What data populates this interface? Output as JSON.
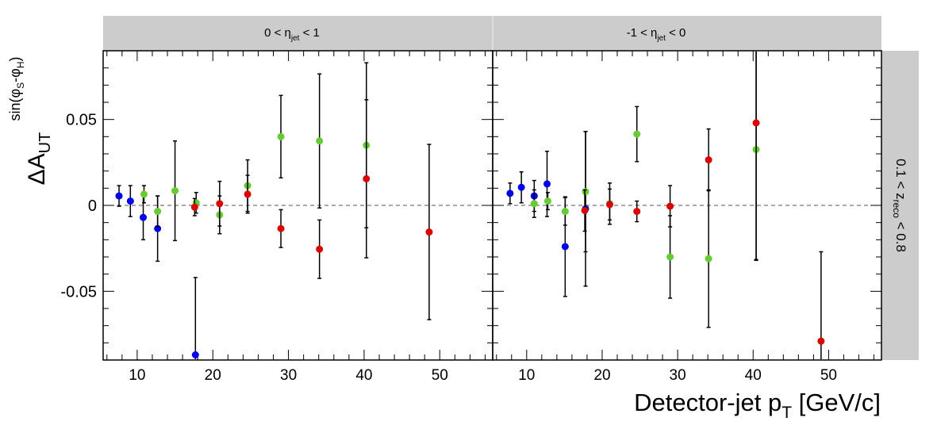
{
  "chart_data": {
    "type": "scatter",
    "title": "",
    "ylabel": {
      "base": "ΔA",
      "sub": "UT",
      "sup_pre": "sin(φ",
      "sup_s1": "S",
      "sup_mid": "-φ",
      "sup_s2": "H",
      "sup_post": ")"
    },
    "xlabel": {
      "main": "Detector-jet p",
      "sub": "T",
      "post": " [GeV/c]"
    },
    "row_label": {
      "pre": "0.1 < z",
      "sub": "reco",
      "post": " < 0.8"
    },
    "xlim": [
      5.5,
      57
    ],
    "ylim": [
      -0.09,
      0.09
    ],
    "x_ticks": [
      10,
      20,
      30,
      40,
      50
    ],
    "y_ticks": [
      0.05,
      0,
      -0.05
    ],
    "y_tick_labels": [
      "0.05",
      "0",
      "-0.05"
    ],
    "reference_line": 0,
    "series_colors": {
      "blue": "#0000ee",
      "green": "#66cc33",
      "red": "#dd0000"
    },
    "panels": [
      {
        "header": {
          "pre": "0 < η",
          "sub": "jet",
          "post": " < 1"
        },
        "series": [
          {
            "color": "blue",
            "points": [
              {
                "x": 7.6,
                "y": 0.0055,
                "err": 0.006
              },
              {
                "x": 9.1,
                "y": 0.0025,
                "err": 0.009
              },
              {
                "x": 10.8,
                "y": -0.007,
                "err": 0.013
              },
              {
                "x": 12.7,
                "y": -0.0135,
                "err": 0.019
              },
              {
                "x": 17.7,
                "y": -0.087,
                "err": 0.045
              }
            ]
          },
          {
            "color": "green",
            "points": [
              {
                "x": 10.9,
                "y": 0.0065,
                "err": 0.005
              },
              {
                "x": 12.7,
                "y": -0.0035,
                "err": 0.009
              },
              {
                "x": 15.0,
                "y": 0.0085,
                "err": 0.029
              },
              {
                "x": 17.8,
                "y": 0.0015,
                "err": 0.006
              },
              {
                "x": 20.9,
                "y": -0.0055,
                "err": 0.011
              },
              {
                "x": 24.6,
                "y": 0.0115,
                "err": 0.015
              },
              {
                "x": 29.0,
                "y": 0.04,
                "err": 0.024
              },
              {
                "x": 34.1,
                "y": 0.0375,
                "err": 0.039
              },
              {
                "x": 40.3,
                "y": 0.035,
                "err": 0.048
              }
            ]
          },
          {
            "color": "red",
            "points": [
              {
                "x": 17.6,
                "y": -0.001,
                "err": 0.005
              },
              {
                "x": 20.9,
                "y": 0.001,
                "err": 0.013
              },
              {
                "x": 24.6,
                "y": 0.0065,
                "err": 0.011
              },
              {
                "x": 29.0,
                "y": -0.0135,
                "err": 0.011
              },
              {
                "x": 34.1,
                "y": -0.0255,
                "err": 0.017
              },
              {
                "x": 40.3,
                "y": 0.0155,
                "err": 0.046
              },
              {
                "x": 48.6,
                "y": -0.0155,
                "err": 0.051
              }
            ]
          }
        ]
      },
      {
        "header": {
          "pre": "-1 < η",
          "sub": "jet",
          "post": " < 0"
        },
        "series": [
          {
            "color": "blue",
            "points": [
              {
                "x": 7.8,
                "y": 0.007,
                "err": 0.006
              },
              {
                "x": 9.3,
                "y": 0.0105,
                "err": 0.009
              },
              {
                "x": 11.0,
                "y": 0.0055,
                "err": 0.009
              },
              {
                "x": 12.7,
                "y": 0.0125,
                "err": 0.019
              },
              {
                "x": 15.1,
                "y": -0.024,
                "err": 0.029
              },
              {
                "x": 17.8,
                "y": -0.002,
                "err": 0.045
              }
            ]
          },
          {
            "color": "green",
            "points": [
              {
                "x": 11.0,
                "y": 0.001,
                "err": 0.008
              },
              {
                "x": 12.8,
                "y": 0.0025,
                "err": 0.005
              },
              {
                "x": 15.1,
                "y": -0.0035,
                "err": 0.008
              },
              {
                "x": 17.8,
                "y": 0.008,
                "err": 0.035
              },
              {
                "x": 21.0,
                "y": 0.001,
                "err": 0.012
              },
              {
                "x": 24.6,
                "y": 0.0415,
                "err": 0.016
              },
              {
                "x": 29.0,
                "y": -0.03,
                "err": 0.024
              },
              {
                "x": 34.1,
                "y": -0.031,
                "err": 0.04
              },
              {
                "x": 40.4,
                "y": 0.0325,
                "err": 0.064
              }
            ]
          },
          {
            "color": "red",
            "points": [
              {
                "x": 17.7,
                "y": -0.003,
                "err": 0.012
              },
              {
                "x": 21.0,
                "y": 0.0005,
                "err": 0.009
              },
              {
                "x": 24.6,
                "y": -0.0035,
                "err": 0.006
              },
              {
                "x": 29.0,
                "y": -0.0005,
                "err": 0.012
              },
              {
                "x": 34.1,
                "y": 0.0265,
                "err": 0.018
              },
              {
                "x": 40.4,
                "y": 0.048,
                "err": 0.08
              },
              {
                "x": 49.0,
                "y": -0.079,
                "err": 0.052
              }
            ]
          }
        ]
      }
    ]
  }
}
